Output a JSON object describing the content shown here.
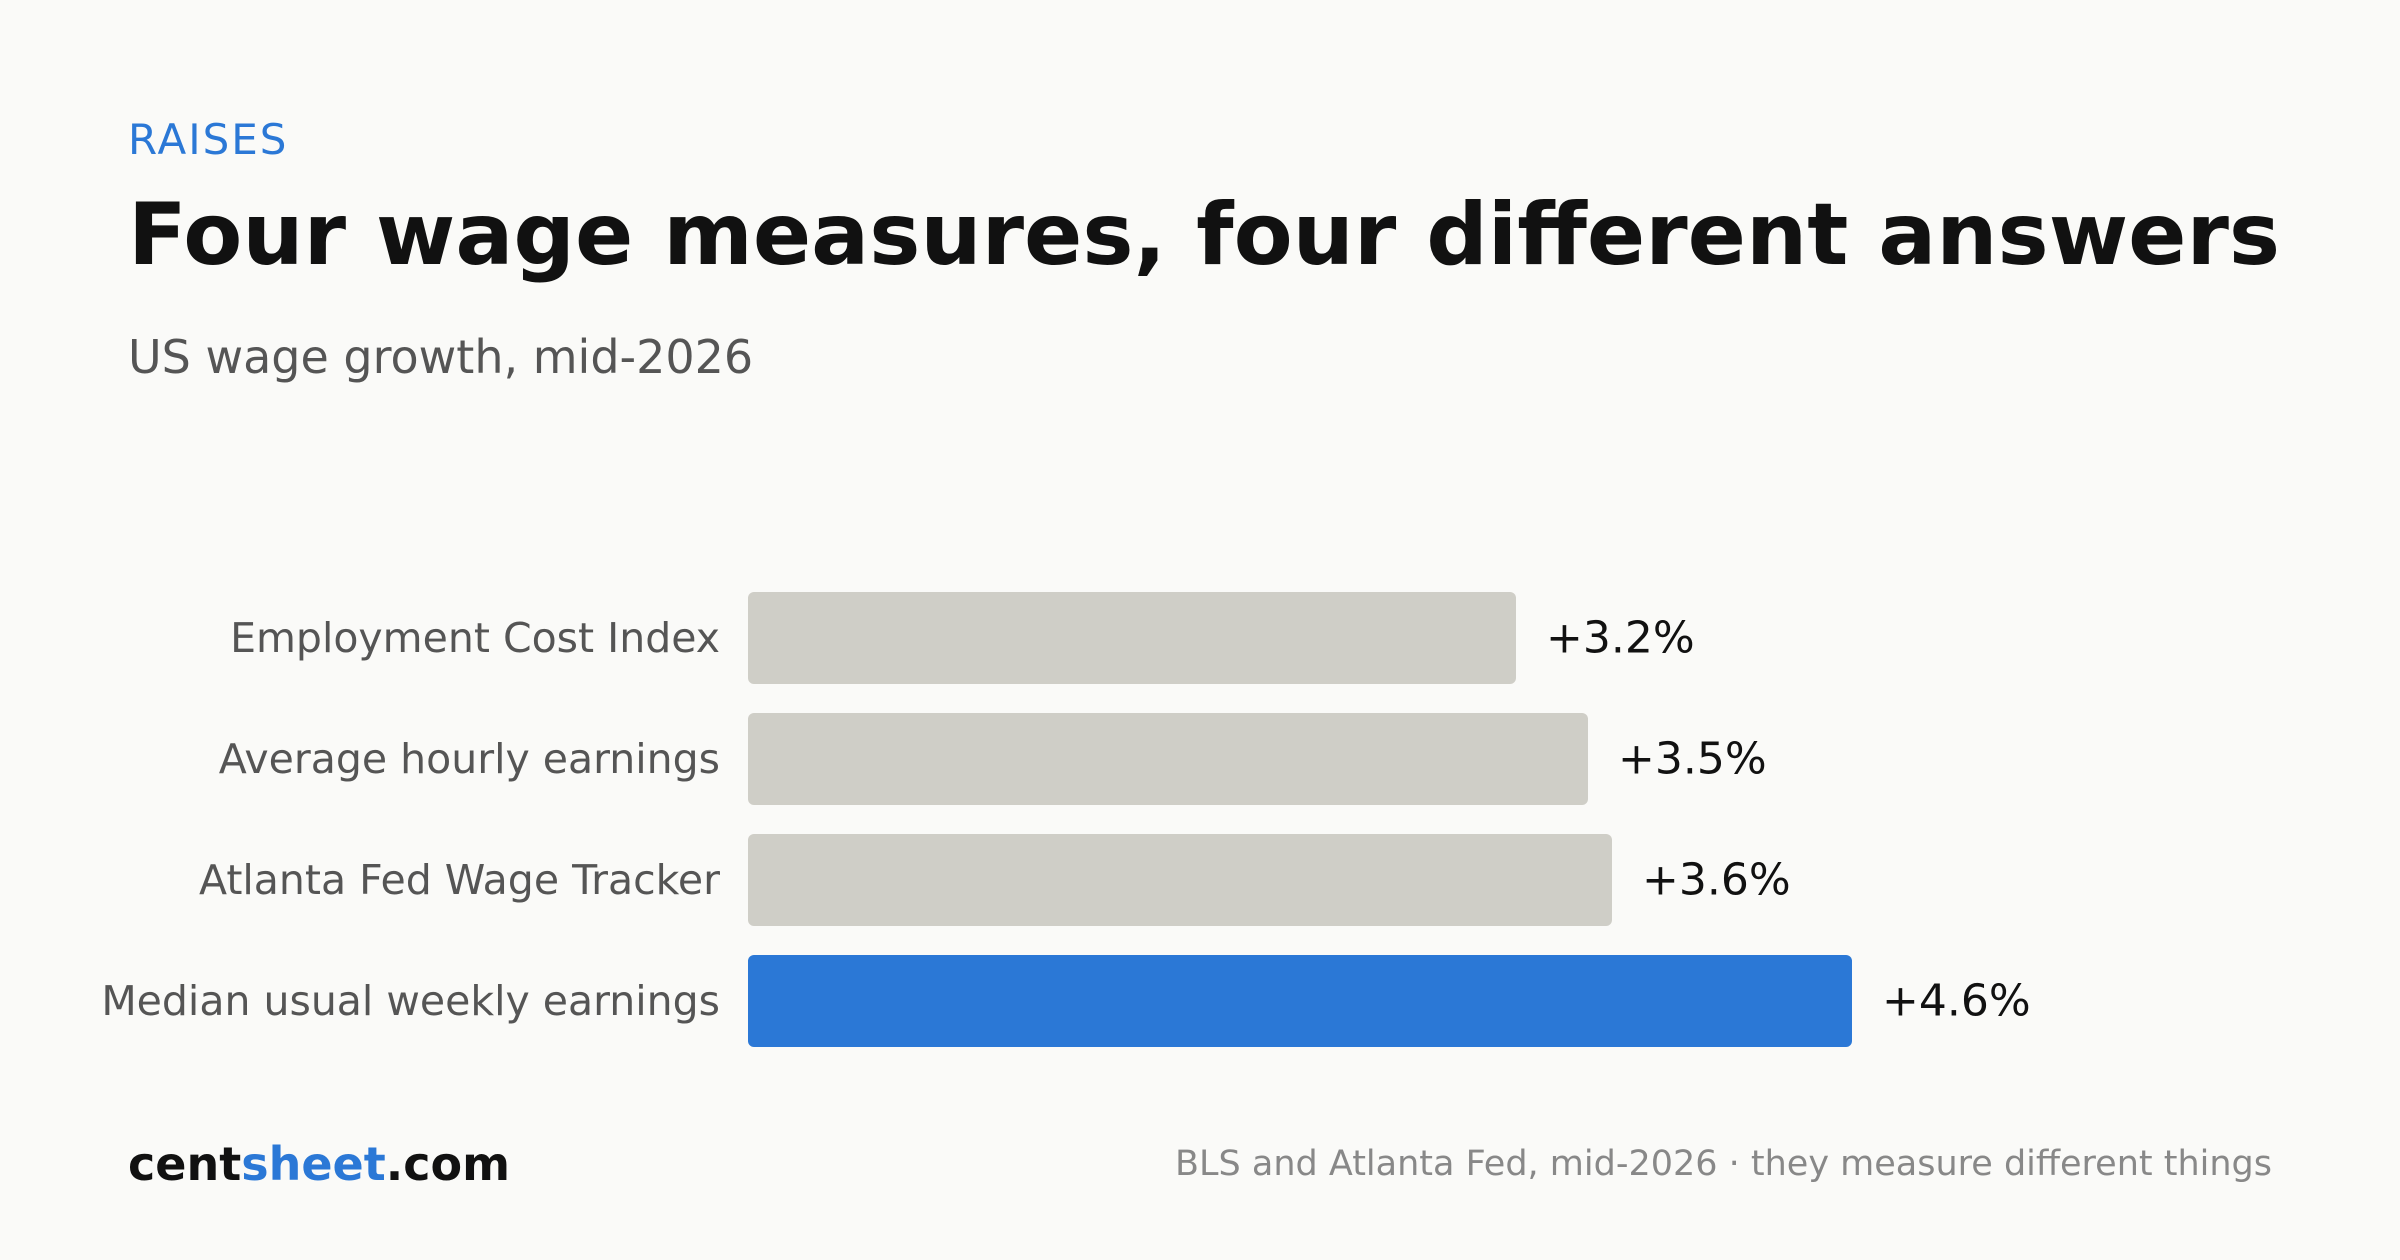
{
  "header": {
    "eyebrow": "RAISES",
    "title": "Four wage measures, four different answers",
    "subtitle": "US wage growth, mid-2026"
  },
  "chart_data": {
    "type": "bar",
    "orientation": "horizontal",
    "categories": [
      "Employment Cost Index",
      "Average hourly earnings",
      "Atlanta Fed Wage Tracker",
      "Median usual weekly earnings"
    ],
    "values": [
      3.2,
      3.5,
      3.6,
      4.6
    ],
    "value_labels": [
      "+3.2%",
      "+3.5%",
      "+3.6%",
      "+4.6%"
    ],
    "highlight_index": 3,
    "colors": {
      "default": "#cfcec7",
      "highlight": "#2b78d6"
    },
    "xlim": [
      0,
      4.6
    ],
    "grid": false,
    "legend": "none"
  },
  "footer": {
    "brand_part1": "cent",
    "brand_part2": "sheet",
    "brand_part3": ".com",
    "source": "BLS and Atlanta Fed, mid-2026 · they measure different things"
  }
}
